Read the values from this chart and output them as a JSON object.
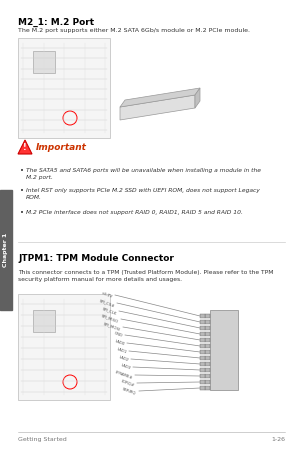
{
  "bg_color": "#ffffff",
  "sidebar_color": "#606060",
  "sidebar_text": "Chapter 1",
  "section1_title": "M2_1: M.2 Port",
  "section1_body": "The M.2 port supports either M.2 SATA 6Gb/s module or M.2 PCIe module.",
  "important_label": "Important",
  "important_bullets": [
    "The SATA5 and SATA6 ports will be unavailable when installing a module in the\nM.2 port.",
    "Intel RST only supports PCIe M.2 SSD with UEFI ROM, does not support Legacy\nROM.",
    "M.2 PCIe interface does not support RAID 0, RAID1, RAID 5 and RAID 10."
  ],
  "section2_title": "JTPM1: TPM Module Connector",
  "section2_body": "This connector connects to a TPM (Trusted Platform Module). Please refer to the TPM\nsecurity platform manual for more details and usages.",
  "footer_left": "Getting Started",
  "footer_right": "1-26"
}
